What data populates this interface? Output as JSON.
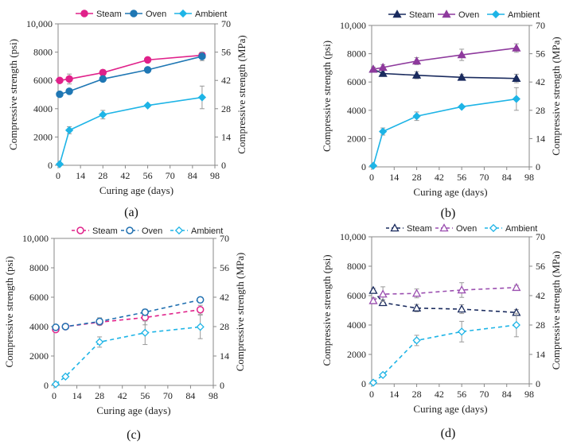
{
  "colors": {
    "steam": "#e0218a",
    "oven_ab": "#1f77b4",
    "oven_cd": "#1f6fb0",
    "ambient": "#1eb4e6",
    "steam_b": "#1a2b5e",
    "oven_b": "#8e3a9d",
    "steam_d": "#1a2b5e",
    "oven_d": "#9b4fb0"
  },
  "chart_data": [
    {
      "id": "a",
      "panel_label": "(a)",
      "type": "line",
      "xlabel": "Curing age (days)",
      "ylabel_left": "Compressive strength (psi)",
      "ylabel_right": "Compressive strength (MPa)",
      "xlim": [
        0,
        98
      ],
      "xticks": [
        "0",
        "14",
        "28",
        "42",
        "56",
        "70",
        "84",
        "98"
      ],
      "ylim_left": [
        0,
        10000
      ],
      "yticks_left": [
        "0",
        "2000",
        "4000",
        "6000",
        "8000",
        "10,000"
      ],
      "ylim_right": [
        0,
        70
      ],
      "yticks_right": [
        "0",
        "14",
        "28",
        "42",
        "56",
        "70"
      ],
      "series": [
        {
          "name": "Steam",
          "style": "solid",
          "marker": "circle",
          "filled": true,
          "colorKey": "steam",
          "x": [
            1,
            7,
            28,
            56,
            90
          ],
          "y": [
            6000,
            6100,
            6550,
            7450,
            7780
          ],
          "err": [
            150,
            350,
            200,
            150,
            200
          ]
        },
        {
          "name": "Oven",
          "style": "solid",
          "marker": "circle",
          "filled": true,
          "colorKey": "oven_ab",
          "x": [
            1,
            7,
            28,
            56,
            90
          ],
          "y": [
            5020,
            5230,
            6100,
            6750,
            7700
          ],
          "err": [
            100,
            150,
            100,
            100,
            300
          ]
        },
        {
          "name": "Ambient",
          "style": "solid",
          "marker": "diamond",
          "filled": true,
          "colorKey": "ambient",
          "x": [
            1,
            7,
            28,
            56,
            90
          ],
          "y": [
            80,
            2480,
            3580,
            4230,
            4800
          ],
          "err": [
            0,
            250,
            300,
            100,
            800
          ]
        }
      ]
    },
    {
      "id": "b",
      "panel_label": "(b)",
      "type": "line",
      "xlabel": "Curing age (days)",
      "ylabel_left": "Compressive strength (psi)",
      "ylabel_right": "Compressive strength (MPa)",
      "xlim": [
        0,
        98
      ],
      "xticks": [
        "0",
        "14",
        "28",
        "42",
        "56",
        "70",
        "84",
        "98"
      ],
      "ylim_left": [
        0,
        10000
      ],
      "yticks_left": [
        "0",
        "2000",
        "4000",
        "6000",
        "8000",
        "10,000"
      ],
      "ylim_right": [
        0,
        70
      ],
      "yticks_right": [
        "0",
        "14",
        "28",
        "42",
        "56",
        "70"
      ],
      "series": [
        {
          "name": "Steam",
          "style": "solid",
          "marker": "triangle",
          "filled": true,
          "colorKey": "steam_b",
          "x": [
            1,
            7,
            28,
            56,
            90
          ],
          "y": [
            6900,
            6600,
            6480,
            6330,
            6250
          ],
          "err": [
            150,
            200,
            250,
            200,
            300
          ]
        },
        {
          "name": "Oven",
          "style": "solid",
          "marker": "triangle",
          "filled": true,
          "colorKey": "oven_b",
          "x": [
            1,
            7,
            28,
            56,
            90
          ],
          "y": [
            6900,
            7030,
            7480,
            7920,
            8400
          ],
          "err": [
            150,
            200,
            250,
            400,
            300
          ]
        },
        {
          "name": "Ambient",
          "style": "solid",
          "marker": "diamond",
          "filled": true,
          "colorKey": "ambient",
          "x": [
            1,
            7,
            28,
            56,
            90
          ],
          "y": [
            80,
            2500,
            3580,
            4250,
            4800
          ],
          "err": [
            0,
            250,
            300,
            100,
            800
          ]
        }
      ]
    },
    {
      "id": "c",
      "panel_label": "(c)",
      "type": "line",
      "xlabel": "Curing age (days)",
      "ylabel_left": "Compressive strength (psi)",
      "ylabel_right": "Compressive strength (MPa)",
      "xlim": [
        0,
        98
      ],
      "xticks": [
        "0",
        "14",
        "28",
        "42",
        "56",
        "70",
        "84",
        "98"
      ],
      "ylim_left": [
        0,
        10000
      ],
      "yticks_left": [
        "0",
        "2000",
        "4000",
        "6000",
        "8000",
        "10,000"
      ],
      "ylim_right": [
        0,
        70
      ],
      "yticks_right": [
        "0",
        "14",
        "28",
        "42",
        "56",
        "70"
      ],
      "series": [
        {
          "name": "Steam",
          "style": "dashed",
          "marker": "circle",
          "filled": false,
          "colorKey": "steam",
          "x": [
            1,
            7,
            28,
            56,
            90
          ],
          "y": [
            3800,
            4000,
            4300,
            4620,
            5150
          ],
          "err": [
            100,
            150,
            200,
            500,
            300
          ]
        },
        {
          "name": "Oven",
          "style": "dashed",
          "marker": "circle",
          "filled": false,
          "colorKey": "oven_cd",
          "x": [
            1,
            7,
            28,
            56,
            90
          ],
          "y": [
            3950,
            4000,
            4350,
            4980,
            5820
          ],
          "err": [
            100,
            100,
            250,
            200,
            150
          ]
        },
        {
          "name": "Ambient",
          "style": "dashed",
          "marker": "diamond",
          "filled": false,
          "colorKey": "ambient",
          "x": [
            1,
            7,
            28,
            56,
            90
          ],
          "y": [
            80,
            600,
            2950,
            3580,
            3980
          ],
          "err": [
            0,
            100,
            350,
            800,
            800
          ]
        }
      ]
    },
    {
      "id": "d",
      "panel_label": "(d)",
      "type": "line",
      "xlabel": "Curing age (days)",
      "ylabel_left": "Compressive strength (psi)",
      "ylabel_right": "Compressive strength (MPa)",
      "xlim": [
        0,
        98
      ],
      "xticks": [
        "0",
        "14",
        "28",
        "42",
        "56",
        "70",
        "84",
        "98"
      ],
      "ylim_left": [
        0,
        10000
      ],
      "yticks_left": [
        "0",
        "2000",
        "4000",
        "6000",
        "8000",
        "10,000"
      ],
      "ylim_right": [
        0,
        70
      ],
      "yticks_right": [
        "0",
        "14",
        "28",
        "42",
        "56",
        "70"
      ],
      "series": [
        {
          "name": "Steam",
          "style": "dashed",
          "marker": "triangle",
          "filled": false,
          "colorKey": "steam_d",
          "x": [
            1,
            7,
            28,
            56,
            90
          ],
          "y": [
            6350,
            5520,
            5150,
            5080,
            4850
          ],
          "err": [
            150,
            200,
            250,
            300,
            200
          ]
        },
        {
          "name": "Oven",
          "style": "dashed",
          "marker": "triangle",
          "filled": false,
          "colorKey": "oven_d",
          "x": [
            1,
            7,
            28,
            56,
            90
          ],
          "y": [
            5650,
            6100,
            6150,
            6380,
            6550
          ],
          "err": [
            200,
            500,
            300,
            500,
            150
          ]
        },
        {
          "name": "Ambient",
          "style": "dashed",
          "marker": "diamond",
          "filled": false,
          "colorKey": "ambient",
          "x": [
            1,
            7,
            28,
            56,
            90
          ],
          "y": [
            80,
            600,
            2950,
            3550,
            4000
          ],
          "err": [
            0,
            100,
            350,
            700,
            800
          ]
        }
      ]
    }
  ]
}
